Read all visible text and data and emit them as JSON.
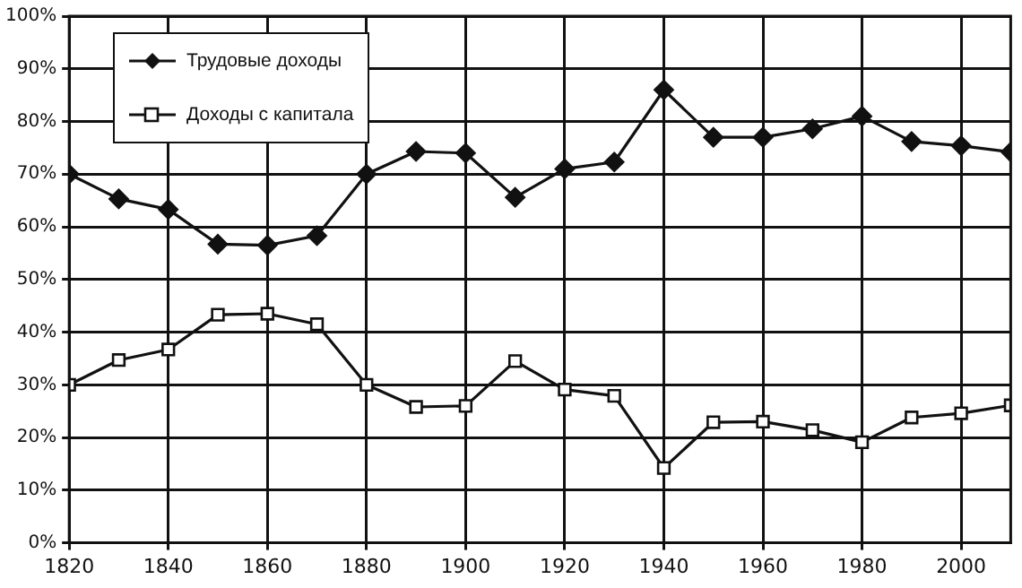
{
  "chart_data": {
    "type": "line",
    "x": [
      1820,
      1830,
      1840,
      1850,
      1860,
      1870,
      1880,
      1890,
      1900,
      1910,
      1920,
      1930,
      1940,
      1950,
      1960,
      1970,
      1980,
      1990,
      2000,
      2010
    ],
    "series": [
      {
        "name": "Трудовые доходы",
        "color": "#111111",
        "marker": "diamond",
        "values": [
          70,
          65.3,
          63.3,
          56.7,
          56.5,
          58.3,
          70,
          74.3,
          74,
          65.6,
          71,
          72.3,
          86,
          77,
          77,
          78.6,
          81,
          76.2,
          75.4,
          74.2
        ]
      },
      {
        "name": "Доходы с капитала",
        "color": "#111111",
        "marker": "square",
        "values": [
          30,
          34.7,
          36.7,
          43.3,
          43.5,
          41.5,
          30,
          25.8,
          26,
          34.5,
          29.1,
          27.9,
          14.2,
          22.9,
          23,
          21.4,
          19.1,
          23.8,
          24.6,
          26.1
        ]
      }
    ],
    "xlim": [
      1820,
      2010
    ],
    "xticks": [
      1820,
      1840,
      1860,
      1880,
      1900,
      1920,
      1940,
      1960,
      1980,
      2000
    ],
    "ylim": [
      0,
      100
    ],
    "yticks": [
      {
        "value": 0,
        "label": "0%"
      },
      {
        "value": 10,
        "label": "10%"
      },
      {
        "value": 20,
        "label": "20%"
      },
      {
        "value": 30,
        "label": "30%"
      },
      {
        "value": 40,
        "label": "40%"
      },
      {
        "value": 50,
        "label": "50%"
      },
      {
        "value": 60,
        "label": "60%"
      },
      {
        "value": 70,
        "label": "70%"
      },
      {
        "value": 80,
        "label": "80%"
      },
      {
        "value": 90,
        "label": "90%"
      },
      {
        "value": 100,
        "label": "100%"
      }
    ],
    "grid": true,
    "legend": "top left",
    "line_style": "solid"
  }
}
